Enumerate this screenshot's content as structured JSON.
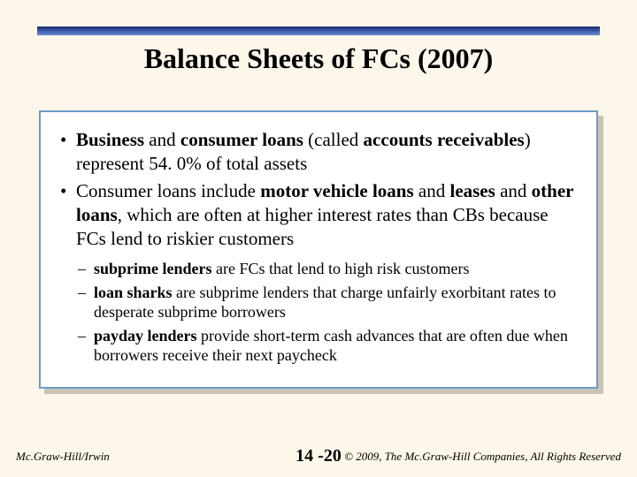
{
  "colors": {
    "slide_bg": "#fdf6ea",
    "title_gradient_top": "#1a2a6c",
    "title_gradient_mid": "#3a5ba8",
    "title_gradient_bot": "#6b8fd4",
    "box_border": "#6b9bc9",
    "box_bg": "#ffffff",
    "box_shadow": "#c8c4b8",
    "text": "#000000"
  },
  "typography": {
    "title_fontsize": 32,
    "bullet_fontsize": 21,
    "subbullet_fontsize": 18,
    "footer_fontsize": 13,
    "pagenum_fontsize": 20,
    "font_family": "Times New Roman"
  },
  "title": "Balance Sheets of FCs (2007)",
  "bullets": [
    {
      "pre": "",
      "bold1": "Business",
      "mid1": " and ",
      "bold2": "consumer loans",
      "mid2": " (called ",
      "bold3": "accounts receivables",
      "post": ") represent 54. 0% of total assets"
    },
    {
      "pre": "Consumer loans include ",
      "bold1": "motor vehicle loans",
      "mid1": " and ",
      "bold2": "leases",
      "mid2": " and ",
      "bold3": "other loans",
      "post": ", which are often at higher interest rates than CBs because FCs lend to riskier customers"
    }
  ],
  "sub_bullets": [
    {
      "bold": "subprime lenders",
      "rest": " are FCs that lend to high risk customers"
    },
    {
      "bold": "loan sharks",
      "rest": " are subprime lenders that charge unfairly exorbitant rates to desperate subprime borrowers"
    },
    {
      "bold": "payday lenders",
      "rest": " provide short-term cash advances that are often due when borrowers receive their next paycheck"
    }
  ],
  "footer": {
    "left": "Mc.Graw-Hill/Irwin",
    "center": "14 -20",
    "right": "© 2009, The Mc.Graw-Hill Companies, All Rights Reserved"
  }
}
